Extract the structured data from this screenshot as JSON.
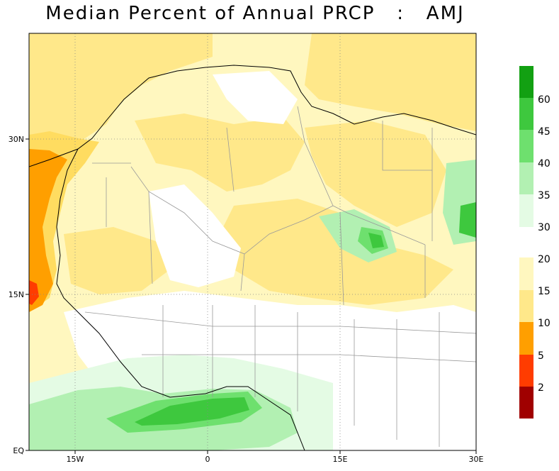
{
  "title": "Median Percent of Annual PRCP   :   AMJ",
  "map": {
    "lat_labels": [
      "30N",
      "15N",
      "EQ"
    ],
    "lon_labels": [
      "15W",
      "0",
      "15E",
      "30E"
    ],
    "grid": "dotted",
    "colors": {
      "land_boundary": "#999999",
      "coast": "#000000",
      "frame": "#000000"
    }
  },
  "colorbar": {
    "upper": {
      "labels": [
        "60",
        "45",
        "40",
        "35",
        "30"
      ],
      "colors": [
        "#12a012",
        "#3ec83e",
        "#6ee06e",
        "#b2f0b2",
        "#e4fbe4"
      ]
    },
    "lower": {
      "labels": [
        "20",
        "15",
        "10",
        "5",
        "2"
      ],
      "colors": [
        "#fff7bf",
        "#ffe88a",
        "#ffdc60",
        "#ff9f00",
        "#ff3c00",
        "#a00000"
      ]
    }
  }
}
